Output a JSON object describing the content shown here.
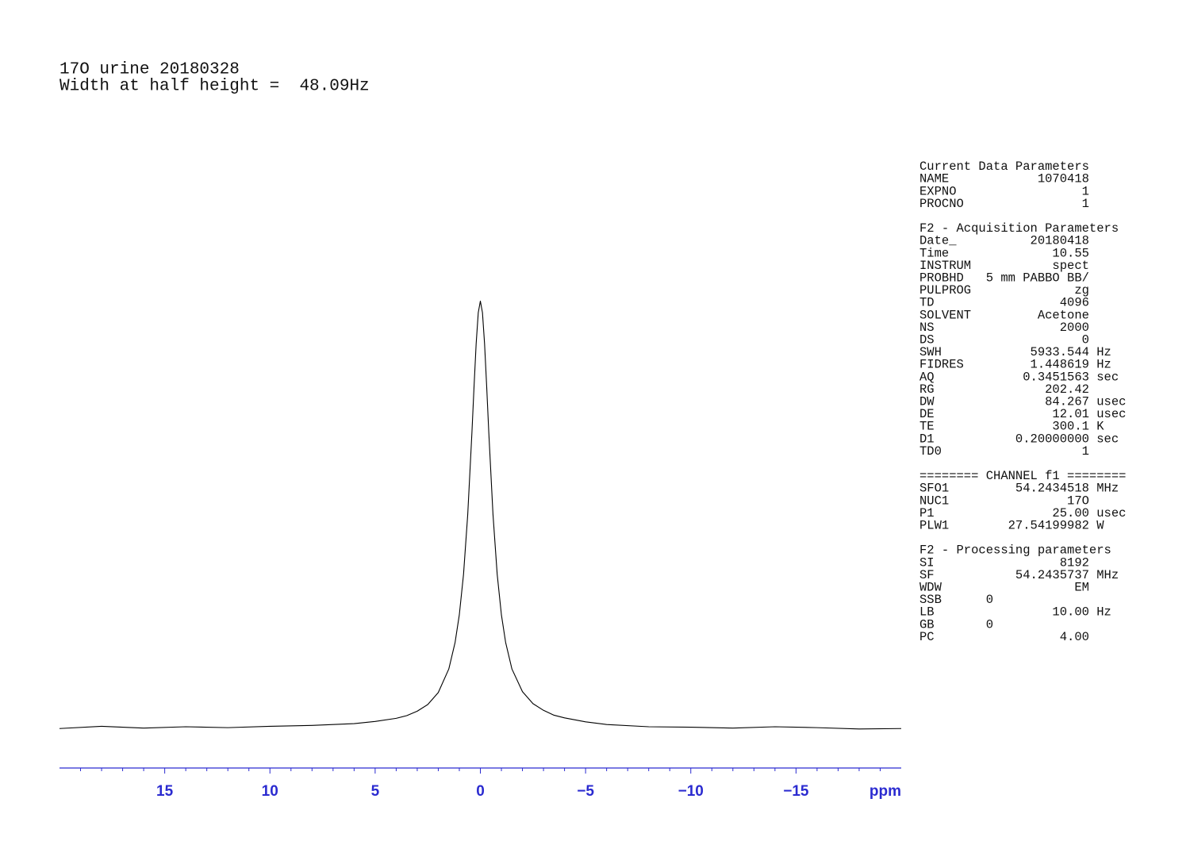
{
  "chart_data": {
    "type": "line",
    "title": "17O urine 20180328",
    "subtitle": "Width at half height =  48.09Hz",
    "x_label": "ppm",
    "x": [
      20,
      18,
      16,
      14,
      12,
      10,
      8,
      6,
      5,
      4,
      3.5,
      3,
      2.5,
      2,
      1.5,
      1.2,
      1,
      0.8,
      0.6,
      0.4,
      0.3,
      0.2,
      0.1,
      0,
      -0.1,
      -0.2,
      -0.3,
      -0.4,
      -0.6,
      -0.8,
      -1,
      -1.2,
      -1.5,
      -2,
      -2.5,
      -3,
      -3.5,
      -4,
      -5,
      -6,
      -8,
      -10,
      -12,
      -14,
      -16,
      -18,
      -20
    ],
    "series": [
      {
        "color": "#000000",
        "values": [
          2.1,
          2.6,
          2.2,
          2.5,
          2.3,
          2.6,
          2.8,
          3.2,
          3.7,
          4.4,
          5.0,
          6.0,
          7.5,
          10.2,
          15.5,
          21.5,
          27.7,
          36.8,
          50.3,
          68.8,
          79.1,
          88.7,
          95.7,
          98.3,
          95.7,
          88.7,
          79.1,
          68.8,
          50.3,
          36.8,
          27.7,
          21.5,
          15.5,
          10.4,
          7.7,
          6.2,
          5.1,
          4.5,
          3.6,
          3.0,
          2.5,
          2.4,
          2.2,
          2.5,
          2.3,
          2.0,
          2.1
        ]
      }
    ],
    "xlim": [
      20,
      -20
    ],
    "xticks": [
      15,
      10,
      5,
      0,
      {
        "value": -5,
        "label": "−5"
      },
      {
        "value": -10,
        "label": "−10"
      },
      {
        "value": -15,
        "label": "−15"
      }
    ],
    "minor_xticks": [
      19,
      18,
      17,
      16,
      14,
      13,
      12,
      11,
      9,
      8,
      7,
      6,
      4,
      3,
      2,
      1,
      -1,
      -2,
      -3,
      -4,
      -6,
      -7,
      -8,
      -9,
      -11,
      -12,
      -13,
      -14,
      -16,
      -17,
      -18,
      -19
    ],
    "ylim": [
      0,
      100
    ],
    "axis_color": "#2b2bd0",
    "grid": false
  },
  "parameters": [
    [
      "Current Data Parameters",
      "NAME            1070418",
      "EXPNO                 1",
      "PROCNO                1"
    ],
    [
      "F2 - Acquisition Parameters",
      "Date_          20180418",
      "Time              10.55",
      "INSTRUM           spect",
      "PROBHD   5 mm PABBO BB/",
      "PULPROG              zg",
      "TD                 4096",
      "SOLVENT         Acetone",
      "NS                 2000",
      "DS                    0",
      "SWH            5933.544 Hz",
      "FIDRES         1.448619 Hz",
      "AQ            0.3451563 sec",
      "RG               202.42",
      "DW               84.267 usec",
      "DE                12.01 usec",
      "TE                300.1 K",
      "D1           0.20000000 sec",
      "TD0                   1"
    ],
    [
      "======== CHANNEL f1 ========",
      "SFO1         54.2434518 MHz",
      "NUC1                17O",
      "P1                25.00 usec",
      "PLW1        27.54199982 W"
    ],
    [
      "F2 - Processing parameters",
      "SI                 8192",
      "SF           54.2435737 MHz",
      "WDW                  EM",
      "SSB      0",
      "LB                10.00 Hz",
      "GB       0",
      "PC                 4.00"
    ]
  ]
}
